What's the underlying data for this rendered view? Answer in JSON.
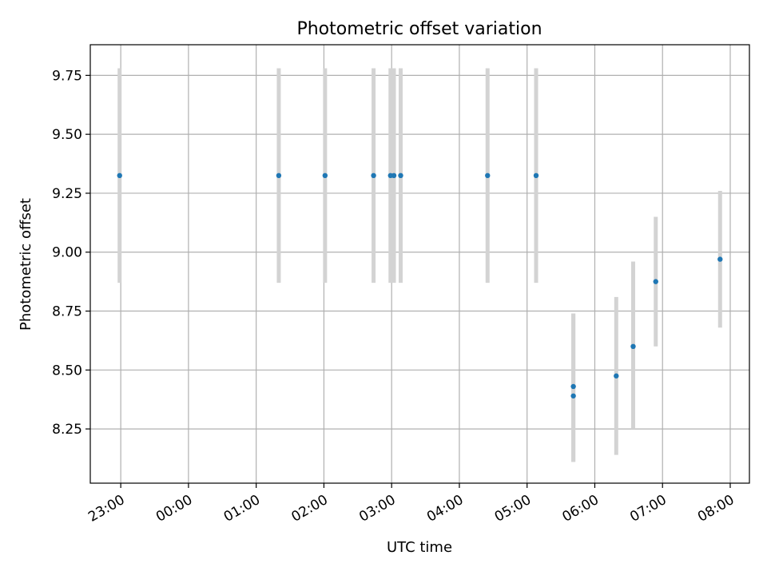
{
  "chart_data": {
    "type": "scatter",
    "title": "Photometric offset variation",
    "xlabel": "UTC time",
    "ylabel": "Photometric offset",
    "x_axis_kind": "time",
    "x_axis_start_label": "22:00",
    "xlim": [
      "22:33",
      "08:17"
    ],
    "ylim": [
      8.02,
      9.88
    ],
    "x_ticks": [
      "23:00",
      "00:00",
      "01:00",
      "02:00",
      "03:00",
      "04:00",
      "05:00",
      "06:00",
      "07:00",
      "08:00"
    ],
    "y_ticks": [
      "8.25",
      "8.50",
      "8.75",
      "9.00",
      "9.25",
      "9.50",
      "9.75"
    ],
    "grid": true,
    "point_color": "#1f77b4",
    "errorbar_color": "#d3d3d3",
    "points": [
      {
        "x": "22:59",
        "y": 9.325,
        "ylow": 8.87,
        "yhigh": 9.78
      },
      {
        "x": "01:20",
        "y": 9.325,
        "ylow": 8.87,
        "yhigh": 9.78
      },
      {
        "x": "02:01",
        "y": 9.325,
        "ylow": 8.87,
        "yhigh": 9.78
      },
      {
        "x": "02:44",
        "y": 9.325,
        "ylow": 8.87,
        "yhigh": 9.78
      },
      {
        "x": "02:59",
        "y": 9.325,
        "ylow": 8.87,
        "yhigh": 9.78
      },
      {
        "x": "03:02",
        "y": 9.325,
        "ylow": 8.87,
        "yhigh": 9.78
      },
      {
        "x": "03:08",
        "y": 9.325,
        "ylow": 8.87,
        "yhigh": 9.78
      },
      {
        "x": "04:25",
        "y": 9.325,
        "ylow": 8.87,
        "yhigh": 9.78
      },
      {
        "x": "05:08",
        "y": 9.325,
        "ylow": 8.87,
        "yhigh": 9.78
      },
      {
        "x": "05:41",
        "y": 8.43,
        "ylow": 8.11,
        "yhigh": 8.74
      },
      {
        "x": "05:41",
        "y": 8.39,
        "ylow": 8.11,
        "yhigh": 8.74
      },
      {
        "x": "06:19",
        "y": 8.475,
        "ylow": 8.14,
        "yhigh": 8.81
      },
      {
        "x": "06:34",
        "y": 8.6,
        "ylow": 8.25,
        "yhigh": 8.96
      },
      {
        "x": "06:54",
        "y": 8.875,
        "ylow": 8.6,
        "yhigh": 9.15
      },
      {
        "x": "07:51",
        "y": 8.97,
        "ylow": 8.68,
        "yhigh": 9.26
      }
    ]
  }
}
